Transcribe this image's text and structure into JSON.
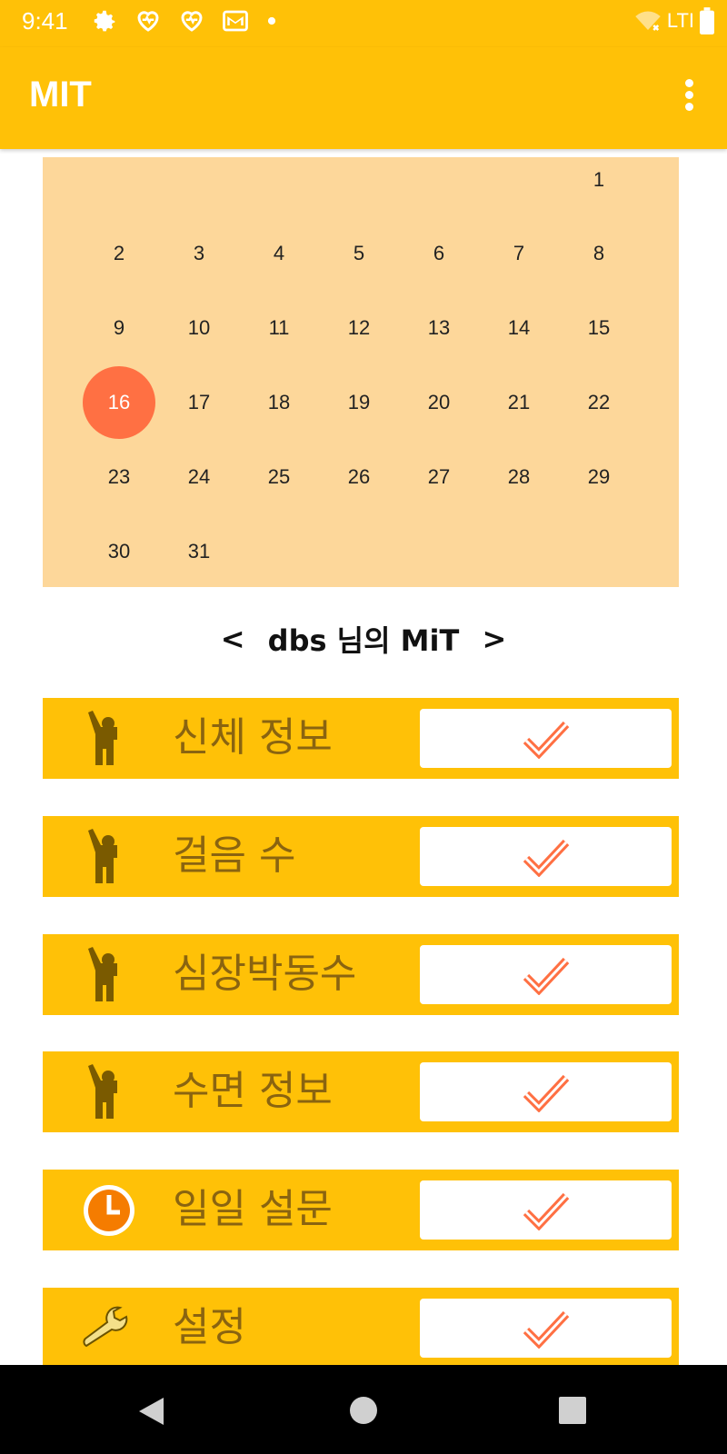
{
  "status": {
    "time": "9:41",
    "network": "LTI"
  },
  "app": {
    "title": "MIT"
  },
  "calendar": {
    "days": [
      "1",
      "2",
      "3",
      "4",
      "5",
      "6",
      "7",
      "8",
      "9",
      "10",
      "11",
      "12",
      "13",
      "14",
      "15",
      "16",
      "17",
      "18",
      "19",
      "20",
      "21",
      "22",
      "23",
      "24",
      "25",
      "26",
      "27",
      "28",
      "29",
      "30",
      "31"
    ],
    "selected": "16"
  },
  "user_nav": {
    "prev": "<",
    "title": "dbs 님의 MiT",
    "next": ">"
  },
  "menu": [
    {
      "label": "신체 정보",
      "icon": "person-raising-hand-icon"
    },
    {
      "label": "걸음 수",
      "icon": "person-raising-hand-icon"
    },
    {
      "label": "심장박동수",
      "icon": "person-raising-hand-icon"
    },
    {
      "label": "수면 정보",
      "icon": "person-raising-hand-icon"
    },
    {
      "label": "일일 설문",
      "icon": "clock-icon"
    },
    {
      "label": "설정",
      "icon": "wrench-icon"
    }
  ],
  "colors": {
    "primary": "#FFC107",
    "calendar_bg": "#FDD79A",
    "accent": "#FF7043",
    "label": "#8A6410"
  }
}
